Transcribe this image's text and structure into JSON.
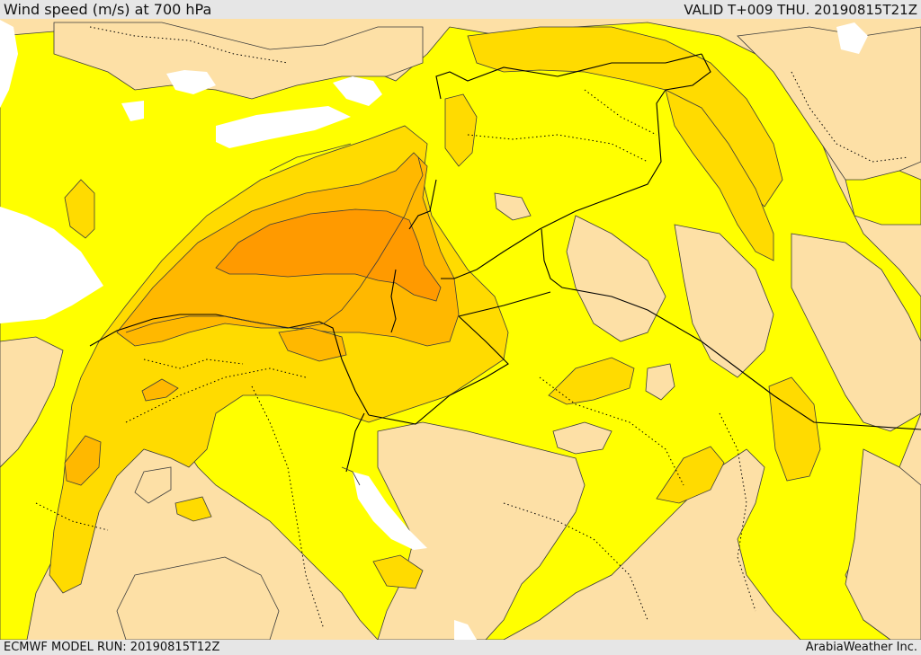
{
  "header": {
    "title": "Wind speed (m/s) at 700 hPa",
    "valid": "VALID T+009 THU. 20190815T21Z"
  },
  "footer": {
    "model_run": "ECMWF MODEL RUN: 20190815T12Z",
    "credit": "ArabiaWeather Inc."
  },
  "colors": {
    "land_calm": "#fde0a6",
    "level_1": "#ffff00",
    "level_2": "#ffdb00",
    "level_3": "#ffb800",
    "level_4": "#ff9a00",
    "sea": "#ffffff",
    "contour": "#3c3c3c",
    "border": "#000000"
  }
}
